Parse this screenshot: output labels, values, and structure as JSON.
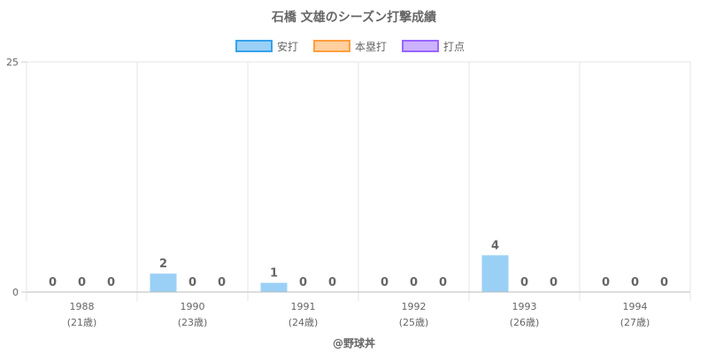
{
  "chart_data": {
    "type": "bar",
    "title": "石橋 文雄のシーズン打撃成績",
    "categories": [
      "1988",
      "1990",
      "1991",
      "1992",
      "1993",
      "1994"
    ],
    "category_sublabels": [
      "(21歳)",
      "(23歳)",
      "(24歳)",
      "(25歳)",
      "(26歳)",
      "(27歳)"
    ],
    "series": [
      {
        "name": "安打",
        "values": [
          0,
          2,
          1,
          0,
          4,
          0
        ],
        "color": "#9ad0f5",
        "border": "#36a2eb"
      },
      {
        "name": "本塁打",
        "values": [
          0,
          0,
          0,
          0,
          0,
          0
        ],
        "color": "#ffcf9f",
        "border": "#ff9f40"
      },
      {
        "name": "打点",
        "values": [
          0,
          0,
          0,
          0,
          0,
          0
        ],
        "color": "#ccb2ff",
        "border": "#9966ff"
      }
    ],
    "ylim": [
      0,
      25
    ],
    "y_ticks": [
      "0",
      "25"
    ],
    "grid": true,
    "legend_position": "top",
    "credit": "@野球丼"
  }
}
